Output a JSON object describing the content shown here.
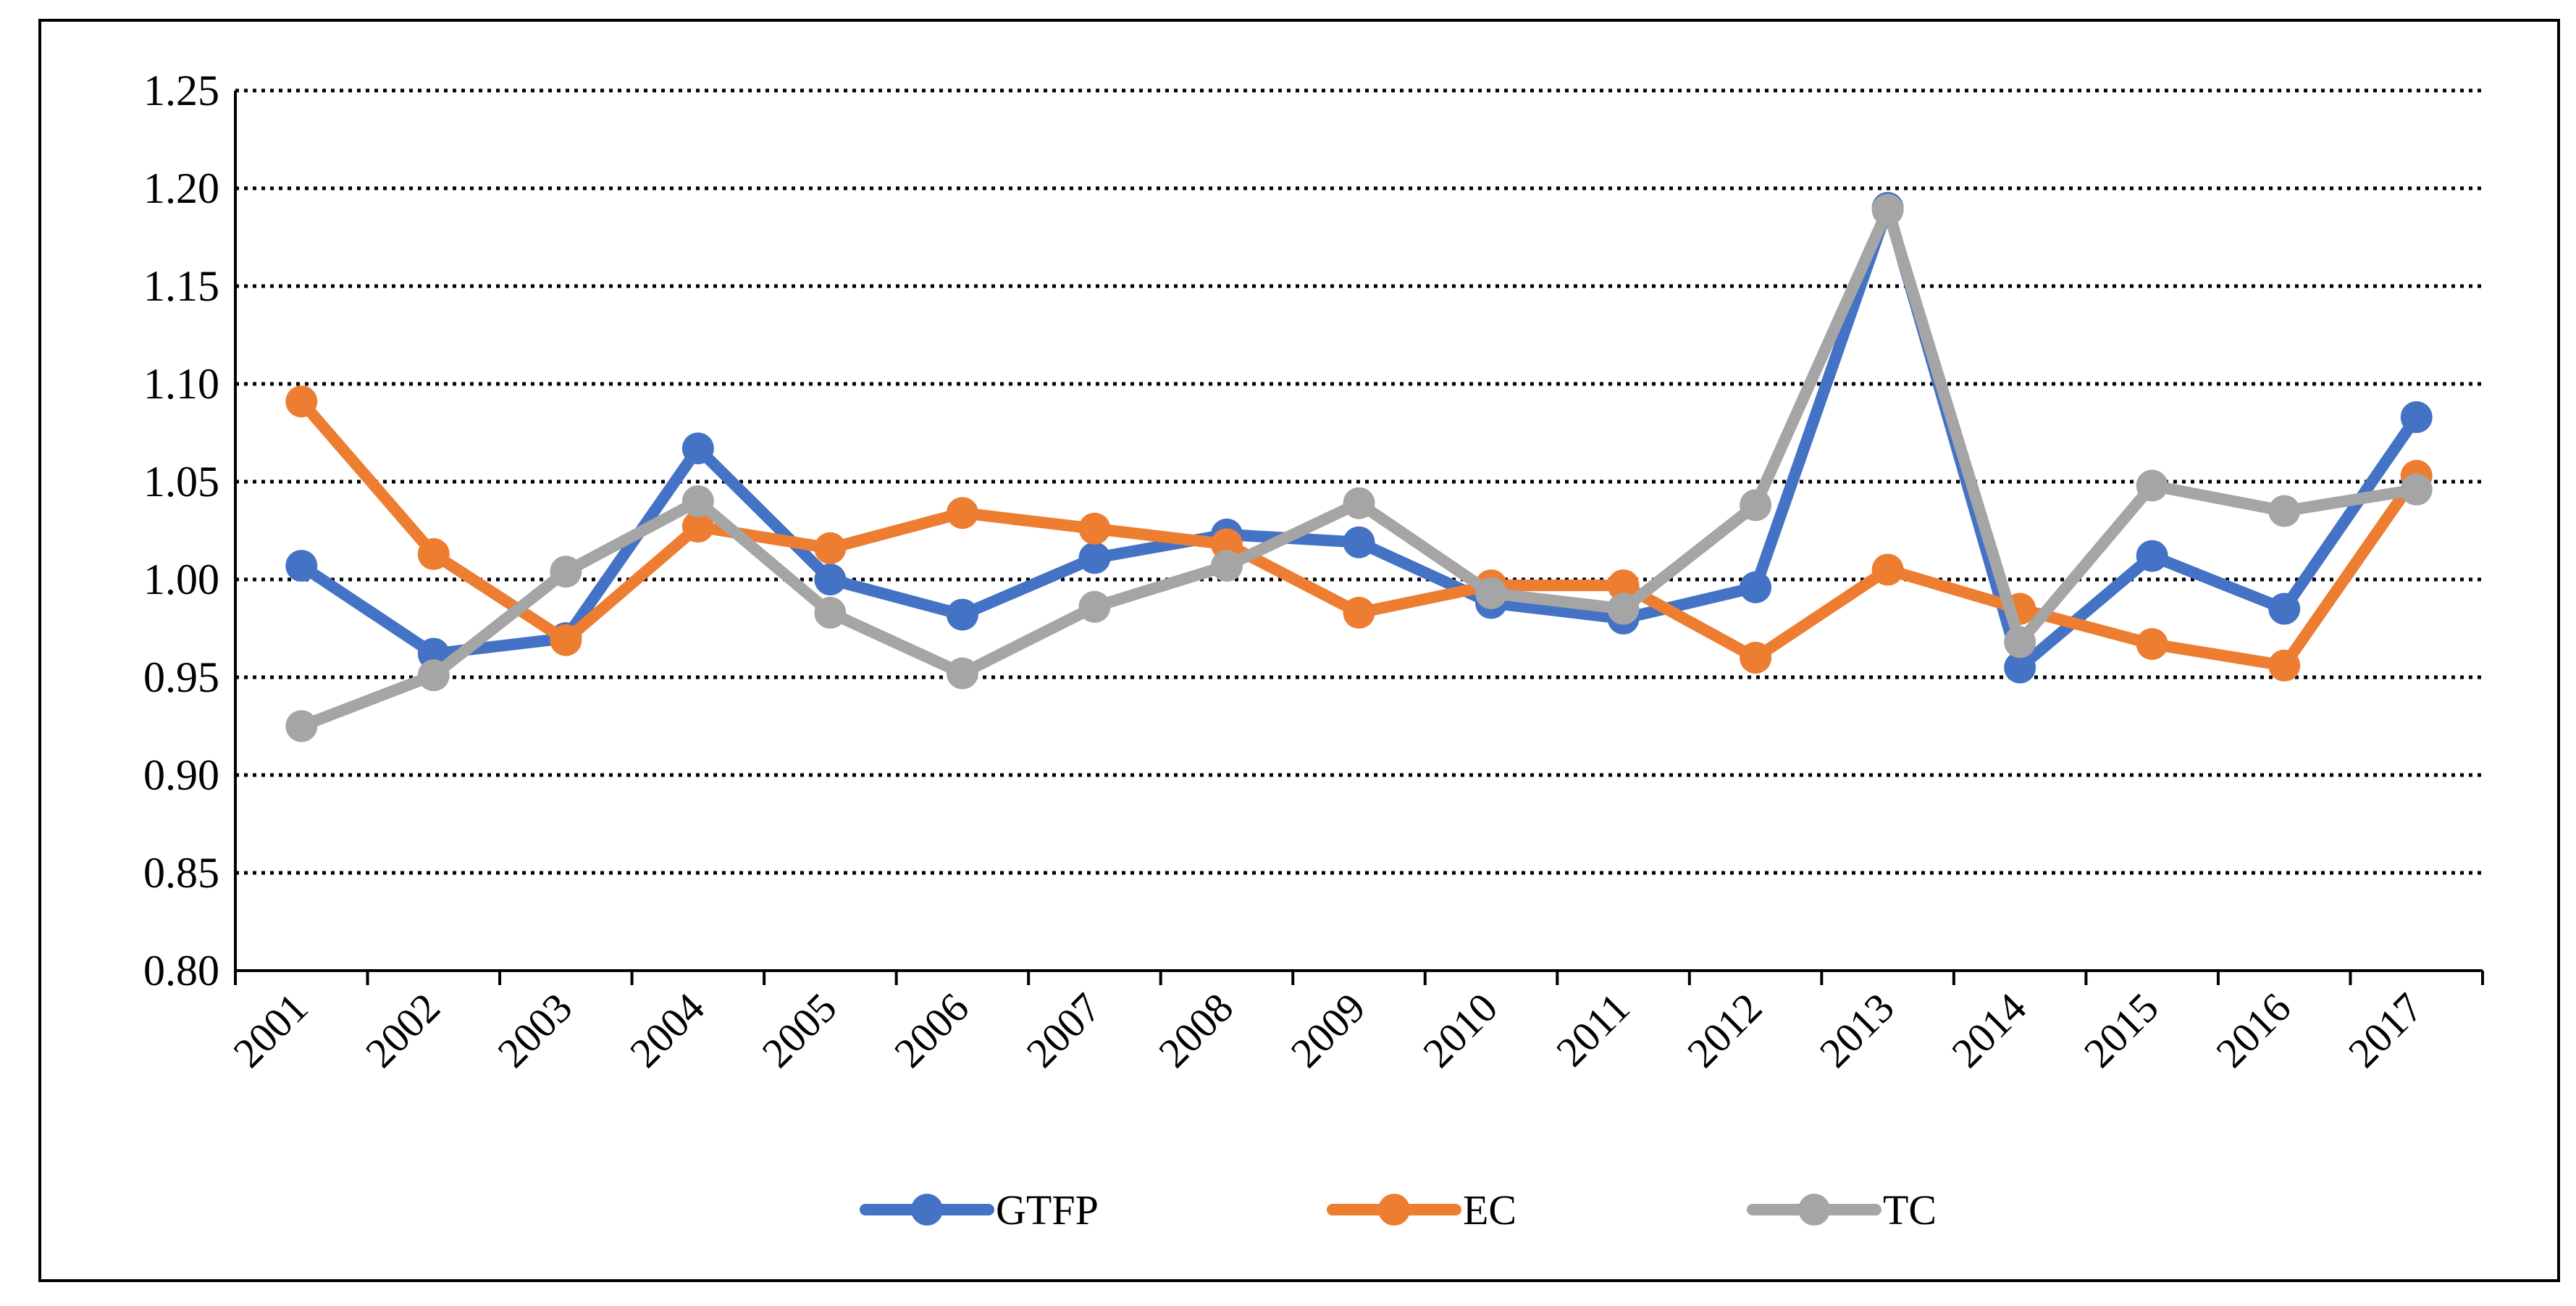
{
  "chart_data": {
    "type": "line",
    "title": "",
    "xlabel": "",
    "ylabel": "",
    "categories": [
      "2001",
      "2002",
      "2003",
      "2004",
      "2005",
      "2006",
      "2007",
      "2008",
      "2009",
      "2010",
      "2011",
      "2012",
      "2013",
      "2014",
      "2015",
      "2016",
      "2017"
    ],
    "ylim": [
      0.8,
      1.25
    ],
    "yticks": [
      0.8,
      0.85,
      0.9,
      0.95,
      1.0,
      1.05,
      1.1,
      1.15,
      1.2,
      1.25
    ],
    "ytick_labels": [
      "0.80",
      "0.85",
      "0.90",
      "0.95",
      "1.00",
      "1.05",
      "1.10",
      "1.15",
      "1.20",
      "1.25"
    ],
    "grid": "horizontal dotted",
    "legend_position": "bottom",
    "series": [
      {
        "name": "GTFP",
        "color": "#4472C4",
        "values": [
          1.007,
          0.962,
          0.97,
          1.067,
          1.0,
          0.982,
          1.011,
          1.023,
          1.019,
          0.988,
          0.98,
          0.996,
          1.19,
          0.955,
          1.012,
          0.985,
          1.083
        ]
      },
      {
        "name": "EC",
        "color": "#ED7D31",
        "values": [
          1.091,
          1.013,
          0.969,
          1.027,
          1.016,
          1.034,
          1.026,
          1.018,
          0.983,
          0.997,
          0.997,
          0.96,
          1.005,
          0.985,
          0.967,
          0.956,
          1.053
        ]
      },
      {
        "name": "TC",
        "color": "#A5A5A5",
        "values": [
          0.925,
          0.951,
          1.004,
          1.04,
          0.983,
          0.952,
          0.986,
          1.007,
          1.039,
          0.993,
          0.985,
          1.038,
          1.189,
          0.968,
          1.048,
          1.035,
          1.046
        ]
      }
    ]
  }
}
